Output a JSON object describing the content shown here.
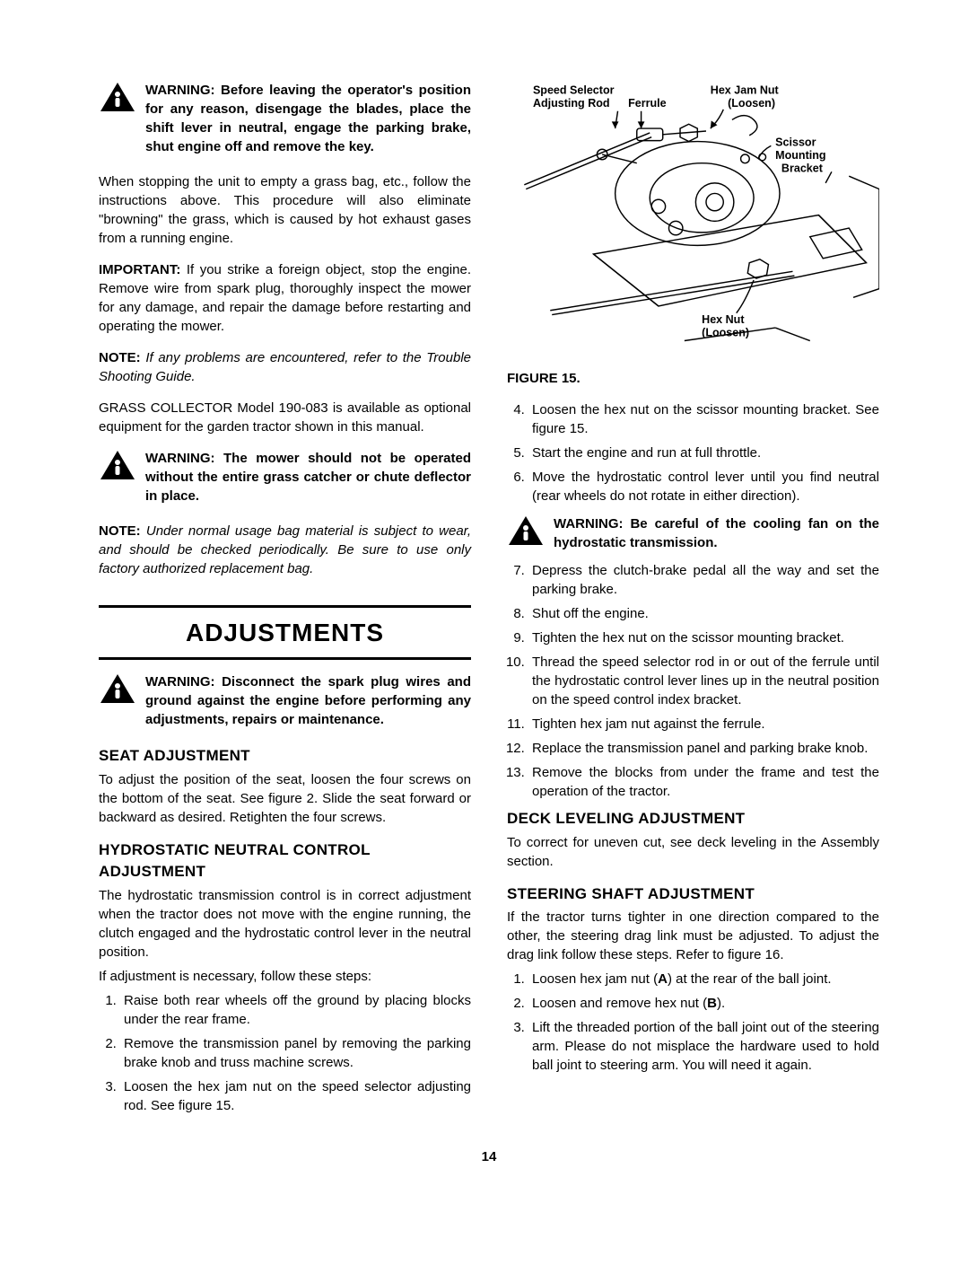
{
  "warn1": "WARNING: Before leaving the operator's position for any reason, disengage the blades, place the shift lever in neutral, engage the parking brake, shut engine off and remove the key.",
  "p1": "When stopping the unit to empty a grass bag, etc., follow the instructions above. This procedure will also eliminate \"browning\" the grass, which is caused by hot exhaust gases from a running engine.",
  "p2_label": "IMPORTANT:",
  "p2_text": " If you strike a foreign object, stop the engine. Remove wire from spark plug, thoroughly inspect the mower for any damage, and repair the damage before restarting and operating the mower.",
  "note1_label": "NOTE:",
  "note1_text": " If any problems are encountered, refer to the Trouble Shooting Guide.",
  "p3": "GRASS COLLECTOR Model 190-083 is available as optional equipment for the garden tractor shown in this manual.",
  "warn2": "WARNING: The mower should not be operated without the entire grass catcher or chute deflector in place.",
  "note2_label": "NOTE:",
  "note2_text": " Under normal usage bag material is subject to wear, and should be checked periodically. Be sure to use only factory authorized replacement bag.",
  "section_adjustments": "ADJUSTMENTS",
  "warn3": "WARNING: Disconnect the spark plug wires and ground against the engine before performing any adjustments, repairs or maintenance.",
  "sub_seat": "SEAT ADJUSTMENT",
  "p_seat": "To adjust the position of the seat, loosen the four screws on the bottom of the seat. See figure 2. Slide the seat forward or backward as desired. Retighten the four screws.",
  "sub_hydro": "HYDROSTATIC NEUTRAL CONTROL ADJUSTMENT",
  "p_hydro": "The hydrostatic transmission control is in correct adjustment when the tractor does not move with the engine running, the clutch engaged and the hydrostatic control lever in the neutral position.",
  "p_hydro2": "If adjustment is necessary, follow these steps:",
  "hydro_steps": [
    "Raise both rear wheels off the ground by placing blocks under the rear frame.",
    "Remove the transmission panel by removing the parking brake knob and truss machine screws.",
    "Loosen the hex jam nut on the speed selector adjusting rod. See figure 15."
  ],
  "fig15_labels": {
    "speed_selector": "Speed Selector",
    "adjusting_rod": "Adjusting Rod",
    "ferrule": "Ferrule",
    "hex_jam_nut": "Hex Jam Nut",
    "loosen1": "(Loosen)",
    "scissor": "Scissor",
    "mounting": "Mounting",
    "bracket": "Bracket",
    "hex_nut": "Hex Nut",
    "loosen2": "(Loosen)"
  },
  "fig15_caption": "FIGURE 15.",
  "hydro_steps2": [
    "Loosen the hex nut on the scissor mounting bracket. See figure 15.",
    "Start the engine and run at full throttle.",
    "Move the hydrostatic control lever until you find neutral (rear wheels do not rotate in either direction)."
  ],
  "warn4": "WARNING: Be careful of the cooling fan on the hydrostatic transmission.",
  "hydro_steps3": [
    "Depress the clutch-brake pedal all the way and set the parking brake.",
    "Shut off the engine.",
    "Tighten the hex nut on the scissor mounting bracket.",
    "Thread the speed selector rod in or out of the ferrule until the hydrostatic control lever lines up in the neutral position on the speed control index bracket.",
    "Tighten hex jam nut against the ferrule.",
    "Replace the transmission panel and parking brake knob.",
    "Remove the blocks from under the frame and test the operation of the tractor."
  ],
  "sub_deck": "DECK LEVELING ADJUSTMENT",
  "p_deck": "To correct for uneven cut, see deck leveling in the Assembly section.",
  "sub_steer": "STEERING SHAFT ADJUSTMENT",
  "p_steer": "If the tractor turns tighter in one direction compared to the other, the steering drag link must be adjusted. To adjust the drag link follow these steps. Refer to figure 16.",
  "steer_steps": [
    "Loosen hex jam nut (<b>A</b>) at the rear of the ball joint.",
    "Loosen and remove hex nut (<b>B</b>).",
    "Lift the threaded portion of the ball joint out of the steering arm. Please do not misplace the hardware used to hold ball joint to steering arm. You will need it again."
  ],
  "page_num": "14"
}
